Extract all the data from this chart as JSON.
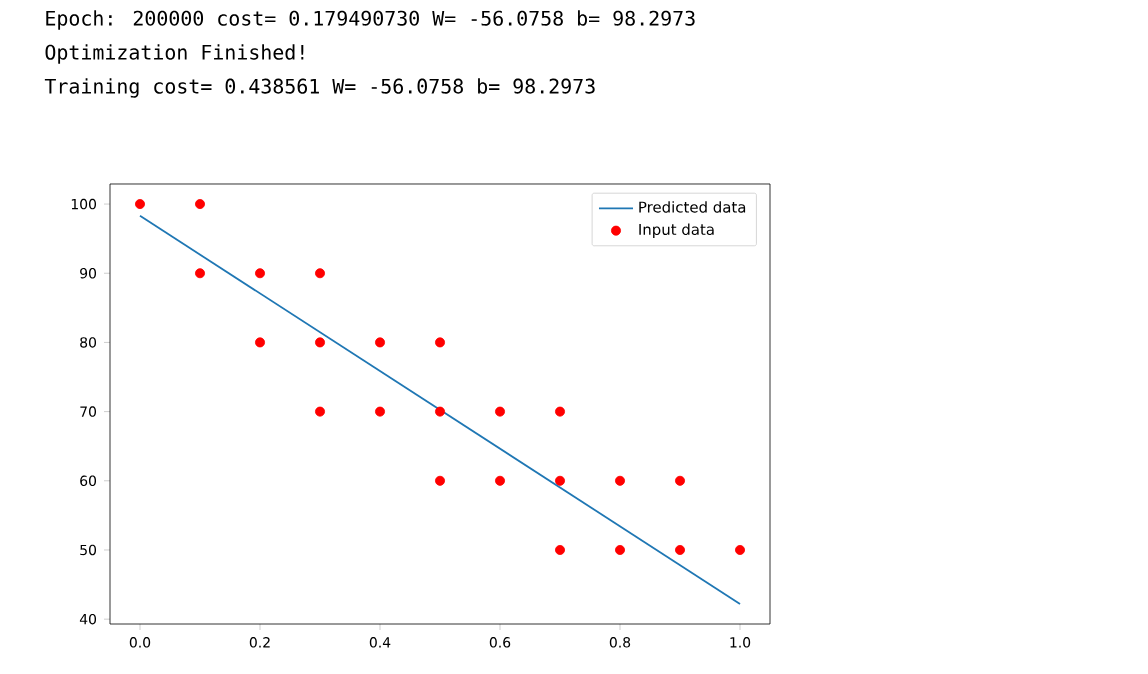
{
  "chart_data": {
    "type": "scatter",
    "annotations": [
      "Epoch: 200000 cost= 0.179490730 W= -56.0758 b= 98.2973",
      "Optimization Finished!",
      "Training cost= 0.438561 W= -56.0758 b= 98.2973"
    ],
    "xlim": [
      -0.05,
      1.05
    ],
    "ylim": [
      39.3,
      102.9
    ],
    "xticks": [
      {
        "value": 0,
        "label": "0.0"
      },
      {
        "value": 0.2,
        "label": "0.2"
      },
      {
        "value": 0.4,
        "label": "0.4"
      },
      {
        "value": 0.6,
        "label": "0.6"
      },
      {
        "value": 0.8,
        "label": "0.8"
      },
      {
        "value": 1.0,
        "label": "1.0"
      }
    ],
    "yticks": [
      40,
      50,
      60,
      70,
      80,
      90,
      100
    ],
    "legend": "top right",
    "grid": false,
    "series": [
      {
        "name": "Predicted data",
        "type": "line",
        "marker": "none",
        "color": "#1f77b4",
        "x": [
          0,
          1
        ],
        "values": [
          98.3,
          42.2
        ]
      },
      {
        "name": "Input data",
        "marker": "circle",
        "color": "#ff0000",
        "x": [
          0,
          0.1,
          0.1,
          0.2,
          0.2,
          0.3,
          0.3,
          0.3,
          0.4,
          0.4,
          0.5,
          0.5,
          0.5,
          0.6,
          0.6,
          0.7,
          0.7,
          0.7,
          0.8,
          0.8,
          0.9,
          0.9,
          1.0
        ],
        "values": [
          100,
          100,
          90,
          90,
          80,
          90,
          80,
          70,
          80,
          70,
          80,
          70,
          60,
          70,
          60,
          70,
          60,
          50,
          60,
          50,
          60,
          50,
          50
        ]
      }
    ]
  }
}
